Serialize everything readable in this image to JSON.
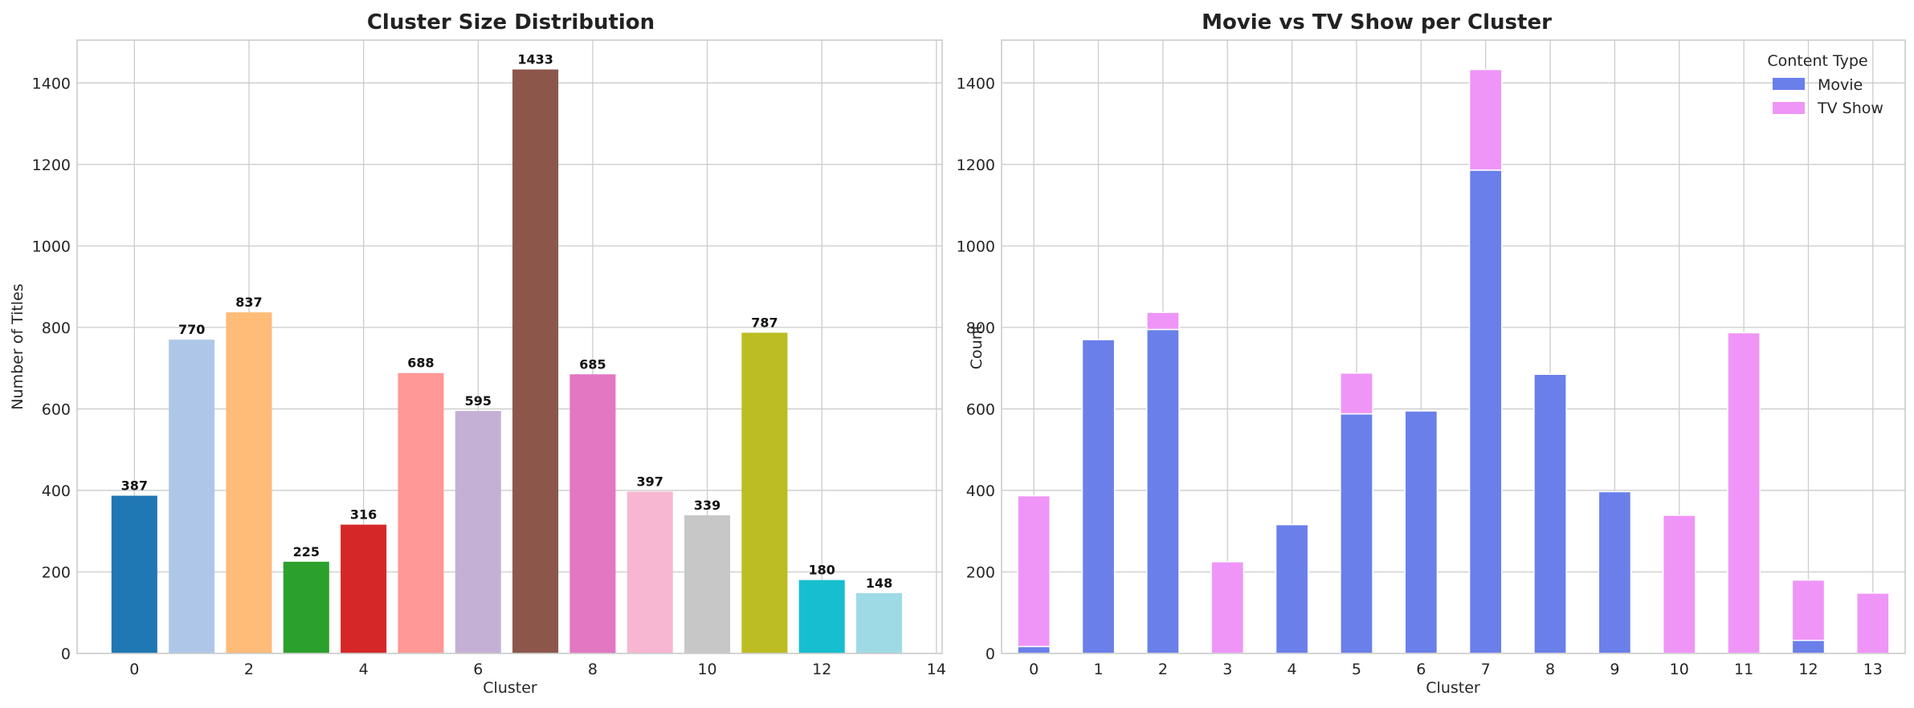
{
  "chart_data": [
    {
      "type": "bar",
      "title": "Cluster Size Distribution",
      "xlabel": "Cluster",
      "ylabel": "Number of Titles",
      "xlim": [
        -1,
        14.1
      ],
      "ylim": [
        0,
        1505
      ],
      "xticks": [
        0,
        2,
        4,
        6,
        8,
        10,
        12,
        14
      ],
      "yticks": [
        0,
        200,
        400,
        600,
        800,
        1000,
        1200,
        1400
      ],
      "grid": true,
      "x": [
        0,
        1,
        2,
        3,
        4,
        5,
        6,
        7,
        8,
        9,
        10,
        11,
        12,
        13
      ],
      "values": [
        387,
        770,
        837,
        225,
        316,
        688,
        595,
        1433,
        685,
        397,
        339,
        787,
        180,
        148
      ],
      "data_labels": [
        "387",
        "770",
        "837",
        "225",
        "316",
        "688",
        "595",
        "1433",
        "685",
        "397",
        "339",
        "787",
        "180",
        "148"
      ],
      "colors": [
        "#1f77b4",
        "#aec7e8",
        "#ffbb78",
        "#2ca02c",
        "#d62728",
        "#ff9896",
        "#c5b0d5",
        "#8c564b",
        "#e377c2",
        "#f7b6d2",
        "#c7c7c7",
        "#bcbd22",
        "#17becf",
        "#9edae5"
      ]
    },
    {
      "type": "bar",
      "stacked": true,
      "title": "Movie vs TV Show per Cluster",
      "xlabel": "Cluster",
      "ylabel": "Count",
      "ylim": [
        0,
        1505
      ],
      "yticks": [
        0,
        200,
        400,
        600,
        800,
        1000,
        1200,
        1400
      ],
      "grid": true,
      "categories": [
        "0",
        "1",
        "2",
        "3",
        "4",
        "5",
        "6",
        "7",
        "8",
        "9",
        "10",
        "11",
        "12",
        "13"
      ],
      "series": [
        {
          "name": "Movie",
          "color": "#6a7fea",
          "values": [
            17,
            770,
            795,
            0,
            316,
            588,
            595,
            1186,
            685,
            397,
            0,
            0,
            32,
            0
          ]
        },
        {
          "name": "TV Show",
          "color": "#ef95f8",
          "values": [
            370,
            0,
            42,
            225,
            0,
            100,
            0,
            247,
            0,
            0,
            339,
            787,
            148,
            148
          ]
        }
      ],
      "legend": {
        "title": "Content Type",
        "position": "top-right"
      }
    }
  ]
}
